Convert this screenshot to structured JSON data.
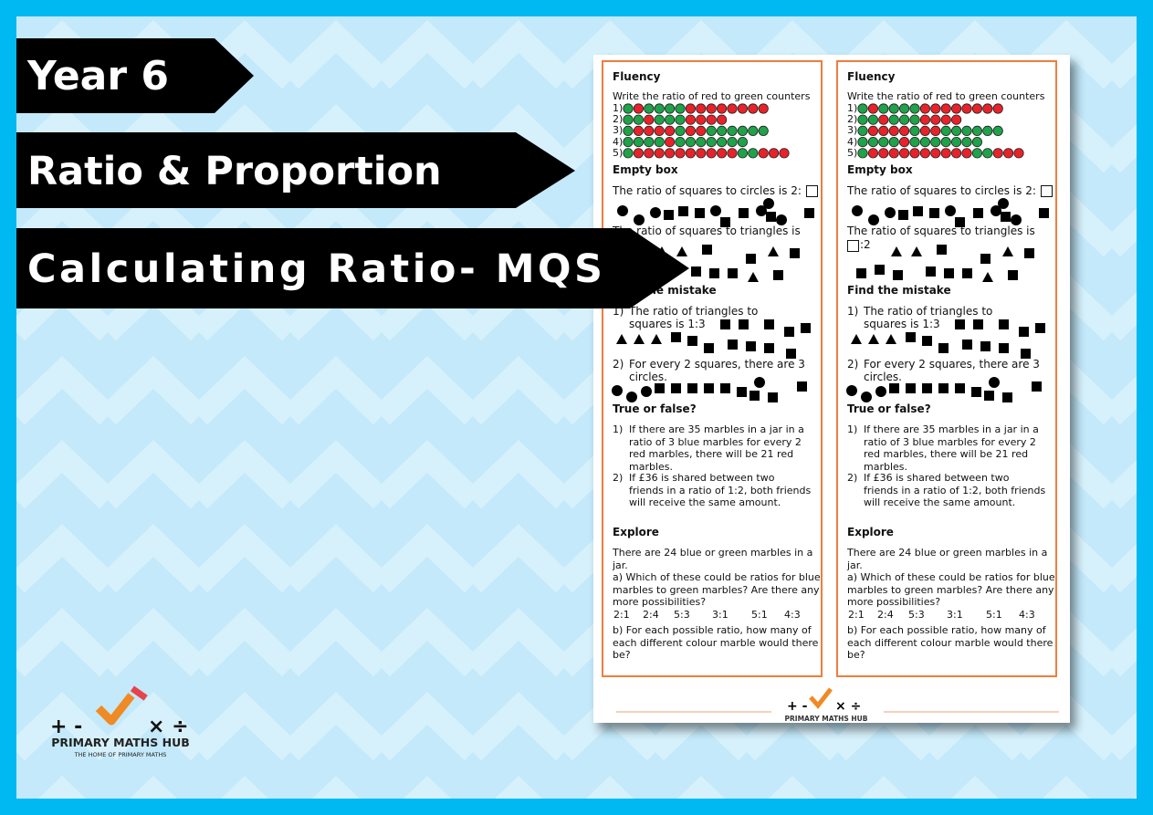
{
  "banners": [
    "Year 6",
    "Ratio & Proportion",
    "Calculating Ratio- MQS"
  ],
  "logo": {
    "symbols_left": "+ -",
    "symbols_right": "× ÷",
    "name": "PRIMARY MATHS HUB",
    "tagline": "THE HOME OF PRIMARY MATHS"
  },
  "worksheet": {
    "sheet": {
      "fluency": {
        "heading": "Fluency",
        "instruction": "Write the ratio of red to green counters",
        "rows": [
          "1)",
          "2)",
          "3)",
          "4)",
          "5)"
        ]
      },
      "empty_box": {
        "heading": "Empty box",
        "q1": "The ratio of squares to circles is 2:",
        "q2": "The ratio of squares to triangles is",
        "q2_suffix": ":2"
      },
      "find_mistake": {
        "heading": "Find the mistake",
        "items": [
          {
            "number": "1)",
            "text": "The ratio of triangles to squares is 1:3"
          },
          {
            "number": "2)",
            "text": "For every 2 squares, there are 3 circles."
          }
        ]
      },
      "true_false": {
        "heading": "True or false?",
        "items": [
          {
            "number": "1)",
            "text": "If there are 35 marbles in a jar in a ratio of 3 blue marbles for every 2 red marbles, there will be 21 red marbles."
          },
          {
            "number": "2)",
            "text": "If £36 is shared between two friends in a ratio of 1:2, both friends will receive the same amount."
          }
        ]
      },
      "explore": {
        "heading": "Explore",
        "intro": "There are 24 blue or green marbles in a jar.",
        "a": "a) Which of these could be ratios for blue marbles to green marbles? Are there any more possibilities?",
        "ratios": [
          "2:1",
          "2:4",
          "5:3",
          "3:1",
          "5:1",
          "4:3"
        ],
        "b": "b) For each possible ratio, how many of each different colour marble would there be?"
      }
    },
    "footer": "PRIMARY MATHS HUB"
  }
}
